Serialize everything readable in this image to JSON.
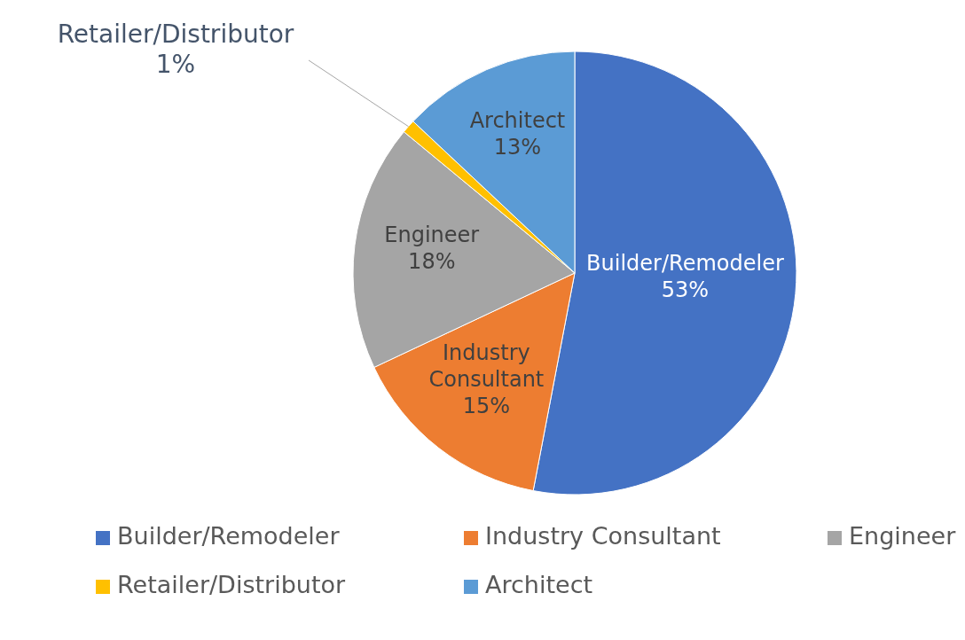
{
  "chart_data": {
    "type": "pie",
    "categories": [
      "Builder/Remodeler",
      "Industry Consultant",
      "Engineer",
      "Retailer/Distributor",
      "Architect"
    ],
    "values": [
      53,
      15,
      18,
      1,
      13
    ],
    "colors": [
      "#4472c4",
      "#ed7d31",
      "#a5a5a5",
      "#ffc000",
      "#5b9bd5"
    ],
    "value_labels": [
      "53%",
      "15%",
      "18%",
      "1%",
      "13%"
    ],
    "legend": "bottom"
  }
}
